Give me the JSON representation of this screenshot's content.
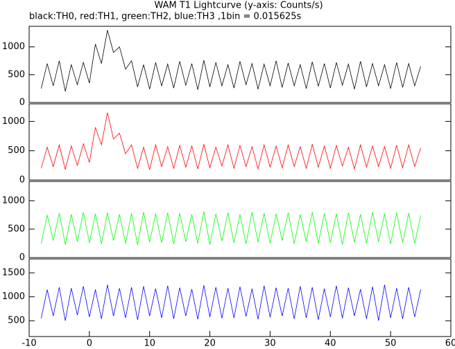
{
  "chart_data": [
    {
      "type": "line",
      "title": "WAM T1 Lightcurve (y-axis: Counts/s)",
      "subtitle": "black:TH0, red:TH1, green:TH2, blue:TH3 ,1bin = 0.015625s",
      "x": [
        -8,
        -7,
        -6,
        -5,
        -4,
        -3,
        -2,
        -1,
        0,
        1,
        2,
        3,
        4,
        5,
        6,
        7,
        8,
        9,
        10,
        11,
        12,
        13,
        14,
        15,
        16,
        17,
        18,
        19,
        20,
        21,
        22,
        23,
        24,
        25,
        26,
        27,
        28,
        29,
        30,
        31,
        32,
        33,
        34,
        35,
        36,
        37,
        38,
        39,
        40,
        41,
        42,
        43,
        44,
        45,
        46,
        47,
        48,
        49,
        50,
        51,
        52,
        53,
        54,
        55
      ],
      "series": [
        {
          "name": "TH0",
          "color": "#000000",
          "values": [
            250,
            700,
            300,
            750,
            200,
            680,
            320,
            720,
            350,
            1050,
            700,
            1300,
            900,
            1000,
            600,
            750,
            280,
            680,
            240,
            720,
            300,
            690,
            260,
            740,
            310,
            700,
            230,
            760,
            280,
            720,
            300,
            680,
            260,
            740,
            320,
            700,
            240,
            690,
            300,
            750,
            270,
            710,
            300,
            680,
            250,
            730,
            290,
            700,
            260,
            720,
            310,
            690,
            240,
            740,
            280,
            700,
            300,
            680,
            250,
            720,
            270,
            700,
            300,
            650
          ]
        }
      ],
      "xlim": [
        -10,
        60
      ],
      "ylim": [
        0,
        1370
      ],
      "yticks": [
        0,
        500,
        1000
      ]
    },
    {
      "type": "line",
      "x": [
        -8,
        -7,
        -6,
        -5,
        -4,
        -3,
        -2,
        -1,
        0,
        1,
        2,
        3,
        4,
        5,
        6,
        7,
        8,
        9,
        10,
        11,
        12,
        13,
        14,
        15,
        16,
        17,
        18,
        19,
        20,
        21,
        22,
        23,
        24,
        25,
        26,
        27,
        28,
        29,
        30,
        31,
        32,
        33,
        34,
        35,
        36,
        37,
        38,
        39,
        40,
        41,
        42,
        43,
        44,
        45,
        46,
        47,
        48,
        49,
        50,
        51,
        52,
        53,
        54,
        55
      ],
      "series": [
        {
          "name": "TH1",
          "color": "#ff0000",
          "values": [
            200,
            560,
            230,
            600,
            180,
            580,
            250,
            620,
            300,
            900,
            600,
            1150,
            700,
            800,
            450,
            600,
            200,
            560,
            180,
            600,
            230,
            570,
            200,
            590,
            220,
            580,
            190,
            610,
            210,
            560,
            240,
            600,
            200,
            590,
            230,
            570,
            190,
            600,
            220,
            580,
            210,
            600,
            230,
            570,
            200,
            610,
            220,
            580,
            200,
            590,
            240,
            560,
            190,
            600,
            220,
            580,
            230,
            570,
            200,
            590,
            210,
            600,
            230,
            550
          ]
        }
      ],
      "xlim": [
        -10,
        60
      ],
      "ylim": [
        0,
        1300
      ],
      "yticks": [
        0,
        500,
        1000
      ]
    },
    {
      "type": "line",
      "x": [
        -8,
        -7,
        -6,
        -5,
        -4,
        -3,
        -2,
        -1,
        0,
        1,
        2,
        3,
        4,
        5,
        6,
        7,
        8,
        9,
        10,
        11,
        12,
        13,
        14,
        15,
        16,
        17,
        18,
        19,
        20,
        21,
        22,
        23,
        24,
        25,
        26,
        27,
        28,
        29,
        30,
        31,
        32,
        33,
        34,
        35,
        36,
        37,
        38,
        39,
        40,
        41,
        42,
        43,
        44,
        45,
        46,
        47,
        48,
        49,
        50,
        51,
        52,
        53,
        54,
        55
      ],
      "series": [
        {
          "name": "TH2",
          "color": "#00ff00",
          "values": [
            250,
            750,
            300,
            780,
            230,
            760,
            280,
            800,
            260,
            770,
            240,
            790,
            300,
            760,
            250,
            780,
            230,
            800,
            270,
            770,
            260,
            790,
            240,
            780,
            280,
            760,
            250,
            810,
            230,
            770,
            290,
            790,
            260,
            760,
            240,
            800,
            270,
            780,
            250,
            770,
            300,
            790,
            240,
            760,
            280,
            800,
            250,
            780,
            260,
            770,
            230,
            790,
            270,
            760,
            250,
            800,
            280,
            770,
            240,
            790,
            260,
            780,
            250,
            740
          ]
        }
      ],
      "xlim": [
        -10,
        60
      ],
      "ylim": [
        0,
        1340
      ],
      "yticks": [
        0,
        500,
        1000
      ]
    },
    {
      "type": "line",
      "x": [
        -8,
        -7,
        -6,
        -5,
        -4,
        -3,
        -2,
        -1,
        0,
        1,
        2,
        3,
        4,
        5,
        6,
        7,
        8,
        9,
        10,
        11,
        12,
        13,
        14,
        15,
        16,
        17,
        18,
        19,
        20,
        21,
        22,
        23,
        24,
        25,
        26,
        27,
        28,
        29,
        30,
        31,
        32,
        33,
        34,
        35,
        36,
        37,
        38,
        39,
        40,
        41,
        42,
        43,
        44,
        45,
        46,
        47,
        48,
        49,
        50,
        51,
        52,
        53,
        54,
        55
      ],
      "series": [
        {
          "name": "TH3",
          "color": "#0000ff",
          "values": [
            550,
            1150,
            600,
            1200,
            500,
            1180,
            620,
            1220,
            580,
            1150,
            540,
            1250,
            600,
            1180,
            560,
            1200,
            520,
            1220,
            600,
            1170,
            560,
            1230,
            540,
            1190,
            600,
            1160,
            530,
            1240,
            580,
            1200,
            550,
            1180,
            560,
            1210,
            590,
            1170,
            530,
            1230,
            570,
            1190,
            600,
            1180,
            540,
            1220,
            560,
            1200,
            520,
            1170,
            580,
            1230,
            550,
            1190,
            600,
            1160,
            540,
            1210,
            500,
            1250,
            560,
            1180,
            540,
            1200,
            580,
            1150
          ]
        }
      ],
      "xlim": [
        -10,
        60
      ],
      "ylim": [
        170,
        1790
      ],
      "yticks": [
        500,
        1000,
        1500
      ],
      "xticks": [
        -10,
        0,
        10,
        20,
        30,
        40,
        50,
        60
      ]
    }
  ]
}
